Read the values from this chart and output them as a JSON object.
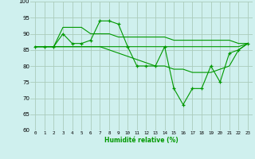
{
  "xlabel": "Humidité relative (%)",
  "background_color": "#cff0ee",
  "grid_color": "#aaccbb",
  "line_color": "#009900",
  "xlim": [
    -0.5,
    23.5
  ],
  "ylim": [
    60,
    100
  ],
  "yticks": [
    60,
    65,
    70,
    75,
    80,
    85,
    90,
    95,
    100
  ],
  "xticks": [
    0,
    1,
    2,
    3,
    4,
    5,
    6,
    7,
    8,
    9,
    10,
    11,
    12,
    13,
    14,
    15,
    16,
    17,
    18,
    19,
    20,
    21,
    22,
    23
  ],
  "lines": [
    {
      "x": [
        0,
        1,
        2,
        3,
        4,
        5,
        6,
        7,
        8,
        9,
        10,
        11,
        12,
        13,
        14,
        15,
        16,
        17,
        18,
        19,
        20,
        21,
        22,
        23
      ],
      "y": [
        86,
        86,
        86,
        90,
        87,
        87,
        88,
        94,
        94,
        93,
        86,
        80,
        80,
        80,
        86,
        73,
        68,
        73,
        73,
        80,
        75,
        84,
        85,
        87
      ],
      "marker": true
    },
    {
      "x": [
        0,
        1,
        2,
        3,
        4,
        5,
        6,
        7,
        8,
        9,
        10,
        11,
        12,
        13,
        14,
        15,
        16,
        17,
        18,
        19,
        20,
        21,
        22,
        23
      ],
      "y": [
        86,
        86,
        86,
        92,
        92,
        92,
        90,
        90,
        90,
        89,
        89,
        89,
        89,
        89,
        89,
        88,
        88,
        88,
        88,
        88,
        88,
        88,
        87,
        87
      ],
      "marker": false
    },
    {
      "x": [
        0,
        1,
        2,
        3,
        4,
        5,
        6,
        7,
        8,
        9,
        10,
        11,
        12,
        13,
        14,
        15,
        16,
        17,
        18,
        19,
        20,
        21,
        22,
        23
      ],
      "y": [
        86,
        86,
        86,
        86,
        86,
        86,
        86,
        86,
        85,
        84,
        83,
        82,
        81,
        80,
        80,
        79,
        79,
        78,
        78,
        78,
        79,
        80,
        85,
        87
      ],
      "marker": false
    },
    {
      "x": [
        0,
        1,
        2,
        3,
        4,
        5,
        6,
        7,
        8,
        9,
        10,
        11,
        12,
        13,
        14,
        15,
        16,
        17,
        18,
        19,
        20,
        21,
        22,
        23
      ],
      "y": [
        86,
        86,
        86,
        86,
        86,
        86,
        86,
        86,
        86,
        86,
        86,
        86,
        86,
        86,
        86,
        86,
        86,
        86,
        86,
        86,
        86,
        86,
        86,
        87
      ],
      "marker": false
    }
  ]
}
